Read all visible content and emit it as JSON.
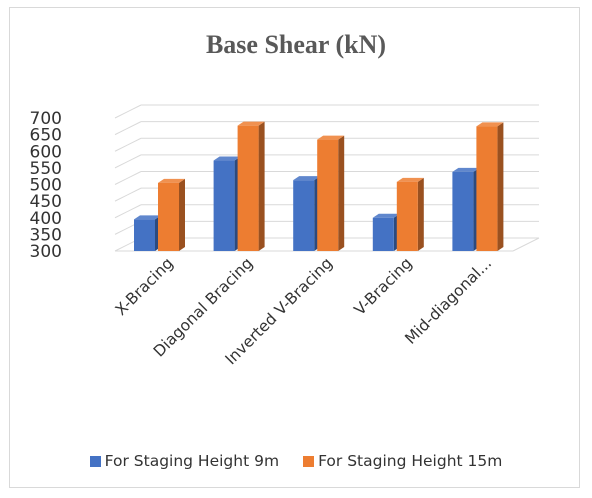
{
  "chart_data": {
    "type": "bar",
    "title": "Base Shear (kN)",
    "categories": [
      "X-Bracing",
      "Diagonal Bracing",
      "Inverted V-Bracing",
      "V-Bracing",
      "Mid-diagonal..."
    ],
    "series": [
      {
        "name": "For Staging Height 9m",
        "values": [
          395,
          572,
          513,
          400,
          538
        ],
        "color": "#4472C4"
      },
      {
        "name": "For Staging Height 15m",
        "values": [
          505,
          677,
          635,
          508,
          675
        ],
        "color": "#ED7D31"
      }
    ],
    "ylim": [
      300,
      700
    ],
    "yticks": [
      300,
      350,
      400,
      450,
      500,
      550,
      600,
      650,
      700
    ],
    "grid": true,
    "legend_position": "bottom",
    "xlabel": "",
    "ylabel": ""
  }
}
